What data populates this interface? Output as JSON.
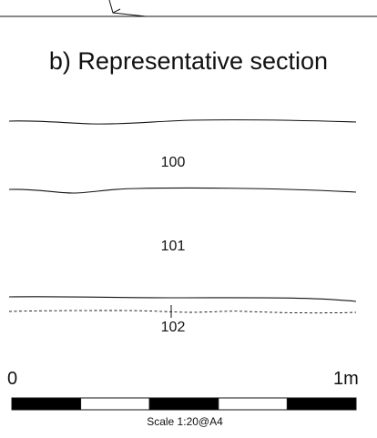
{
  "section": {
    "title": "b) Representative section",
    "layers": [
      {
        "number": "100"
      },
      {
        "number": "101"
      },
      {
        "number": "102"
      }
    ]
  },
  "scale_bar": {
    "start_label": "0",
    "end_label": "1m",
    "caption": "Scale 1:20@A4",
    "segment_colors": [
      "#000000",
      "#ffffff",
      "#000000",
      "#ffffff",
      "#000000"
    ]
  },
  "colors": {
    "line": "#111111",
    "background": "#ffffff"
  }
}
